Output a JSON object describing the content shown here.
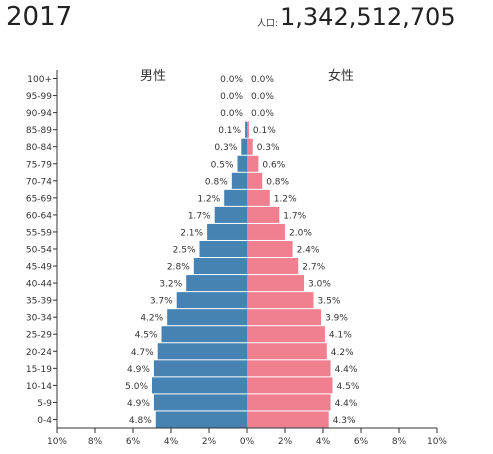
{
  "header": {
    "year": "2017",
    "population_label": "人口:",
    "population_value": "1,342,512,705"
  },
  "colors": {
    "male": "#4682b4",
    "female": "#f08090",
    "axis": "#333333"
  },
  "chart_data": {
    "type": "bar",
    "orientation": "horizontal",
    "subtype": "population-pyramid",
    "series": [
      {
        "name": "男性",
        "values": [
          0.0,
          0.0,
          0.0,
          0.1,
          0.3,
          0.5,
          0.8,
          1.2,
          1.7,
          2.1,
          2.5,
          2.8,
          3.2,
          3.7,
          4.2,
          4.5,
          4.7,
          4.9,
          5.0,
          4.9,
          4.8
        ]
      },
      {
        "name": "女性",
        "values": [
          0.0,
          0.0,
          0.0,
          0.1,
          0.3,
          0.6,
          0.8,
          1.2,
          1.7,
          2.0,
          2.4,
          2.7,
          3.0,
          3.5,
          3.9,
          4.1,
          4.2,
          4.4,
          4.5,
          4.4,
          4.3
        ]
      }
    ],
    "categories": [
      "100+",
      "95-99",
      "90-94",
      "85-89",
      "80-84",
      "75-79",
      "70-74",
      "65-69",
      "60-64",
      "55-59",
      "50-54",
      "45-49",
      "40-44",
      "35-39",
      "30-34",
      "25-29",
      "20-24",
      "15-19",
      "10-14",
      "5-9",
      "0-4"
    ],
    "value_labels": {
      "male": [
        "0.0%",
        "0.0%",
        "0.0%",
        "0.1%",
        "0.3%",
        "0.5%",
        "0.8%",
        "1.2%",
        "1.7%",
        "2.1%",
        "2.5%",
        "2.8%",
        "3.2%",
        "3.7%",
        "4.2%",
        "4.5%",
        "4.7%",
        "4.9%",
        "5.0%",
        "4.9%",
        "4.8%"
      ],
      "female": [
        "0.0%",
        "0.0%",
        "0.0%",
        "0.1%",
        "0.3%",
        "0.6%",
        "0.8%",
        "1.2%",
        "1.7%",
        "2.0%",
        "2.4%",
        "2.7%",
        "3.0%",
        "3.5%",
        "3.9%",
        "4.1%",
        "4.2%",
        "4.4%",
        "4.5%",
        "4.4%",
        "4.3%"
      ]
    },
    "xlim": [
      -10,
      10
    ],
    "x_ticks": [
      -10,
      -8,
      -6,
      -4,
      -2,
      0,
      2,
      4,
      6,
      8,
      10
    ],
    "x_tick_labels": [
      "10%",
      "8%",
      "6%",
      "4%",
      "2%",
      "0%",
      "2%",
      "4%",
      "6%",
      "8%",
      "10%"
    ],
    "grid": false,
    "legend": "top"
  }
}
